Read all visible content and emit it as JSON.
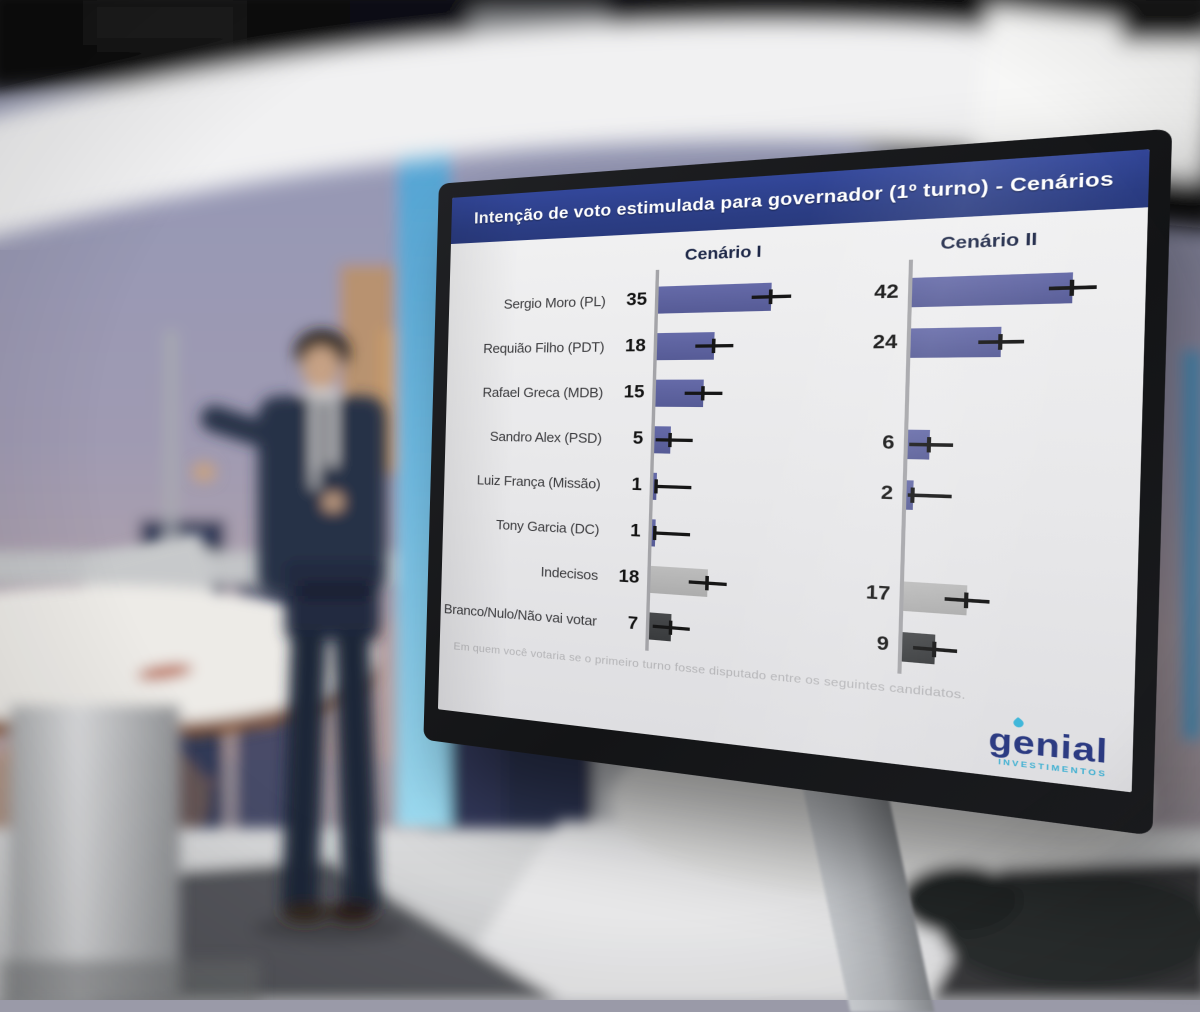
{
  "monitor": {
    "footnote": "Em quem você votaria se o primeiro turno fosse disputado entre os seguintes candidatos.",
    "logo_text": "genial",
    "logo_subtext": "INVESTIMENTOS"
  },
  "chart_data": {
    "type": "bar",
    "orientation": "horizontal",
    "title": "Intenção de voto estimulada para governador (1º turno) - Cenários",
    "categories": [
      "Sergio Moro (PL)",
      "Requião Filho (PDT)",
      "Rafael Greca (MDB)",
      "Sandro Alex (PSD)",
      "Luiz França (Missão)",
      "Tony Garcia (DC)",
      "Indecisos",
      "Branco/Nulo/Não vai votar"
    ],
    "series": [
      {
        "name": "Cenário I",
        "values": [
          35,
          18,
          15,
          5,
          1,
          1,
          18,
          7
        ]
      },
      {
        "name": "Cenário II",
        "values": [
          42,
          24,
          null,
          6,
          2,
          null,
          17,
          9
        ]
      }
    ],
    "category_types": [
      "candidate",
      "candidate",
      "candidate",
      "candidate",
      "candidate",
      "candidate",
      "undecided",
      "blank_null"
    ],
    "xlim": [
      0,
      45
    ],
    "error_bars": true,
    "values_shown_as_labels": true,
    "legend_position": "column-headers",
    "bar_colors": {
      "candidate": "#565b96",
      "undecided": "#b1b1b1",
      "blank_null": "#3d3f41"
    }
  },
  "colors": {
    "title_band": "#2b3d84",
    "chart_background": "#e9e9eb",
    "axis_line": "#a4a4a8",
    "value_text": "#141414",
    "label_text": "#3b3b3e",
    "footnote_text": "#b3b3b6",
    "logo_navy": "#2c3b82",
    "logo_teal": "#41b7da",
    "bezel": "#17181a"
  }
}
